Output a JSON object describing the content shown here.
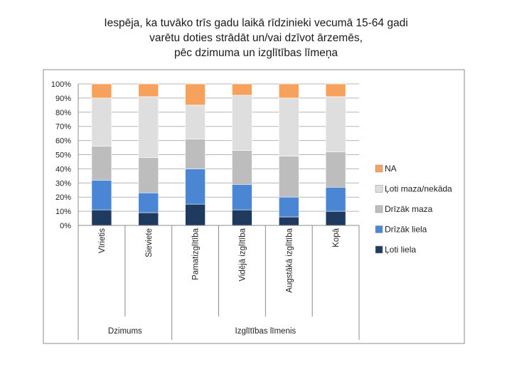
{
  "title_lines": [
    "Iespēja, ka tuvāko trīs gadu laikā rīdzinieki vecumā 15-64 gadi",
    "varētu doties strādāt un/vai dzīvot ārzemēs,",
    "pēc dzimuma un izglītības līmeņa"
  ],
  "chart_data": {
    "type": "bar",
    "stacked": true,
    "percent": true,
    "categories": [
      "Vīrietis",
      "Sieviete",
      "Pamatizglītība",
      "Vidējā izglītība",
      "Augstākā izglītība",
      "Kopā"
    ],
    "groups": [
      {
        "label": "Dzimums",
        "categories": [
          0,
          1
        ]
      },
      {
        "label": "Izglītības līmenis",
        "categories": [
          2,
          3,
          4,
          5
        ]
      }
    ],
    "yticks": [
      "0%",
      "10%",
      "20%",
      "30%",
      "40%",
      "50%",
      "60%",
      "70%",
      "80%",
      "90%",
      "100%"
    ],
    "ylim": [
      0,
      100
    ],
    "legend_position": "right",
    "series": [
      {
        "name": "Ļoti liela",
        "color": "#1f3a5f",
        "values": [
          11,
          9,
          15,
          11,
          6,
          10
        ]
      },
      {
        "name": "Drīzāk liela",
        "color": "#4a86d4",
        "values": [
          21,
          14,
          25,
          18,
          14,
          17
        ]
      },
      {
        "name": "Drīzāk maza",
        "color": "#bdbdbd",
        "values": [
          24,
          25,
          21,
          24,
          29,
          25
        ]
      },
      {
        "name": "Ļoti maza/nekāda",
        "color": "#dedede",
        "values": [
          34,
          43,
          24,
          39,
          41,
          39
        ]
      },
      {
        "name": "NA",
        "color": "#f7a25c",
        "values": [
          10,
          9,
          15,
          8,
          10,
          9
        ]
      }
    ]
  }
}
